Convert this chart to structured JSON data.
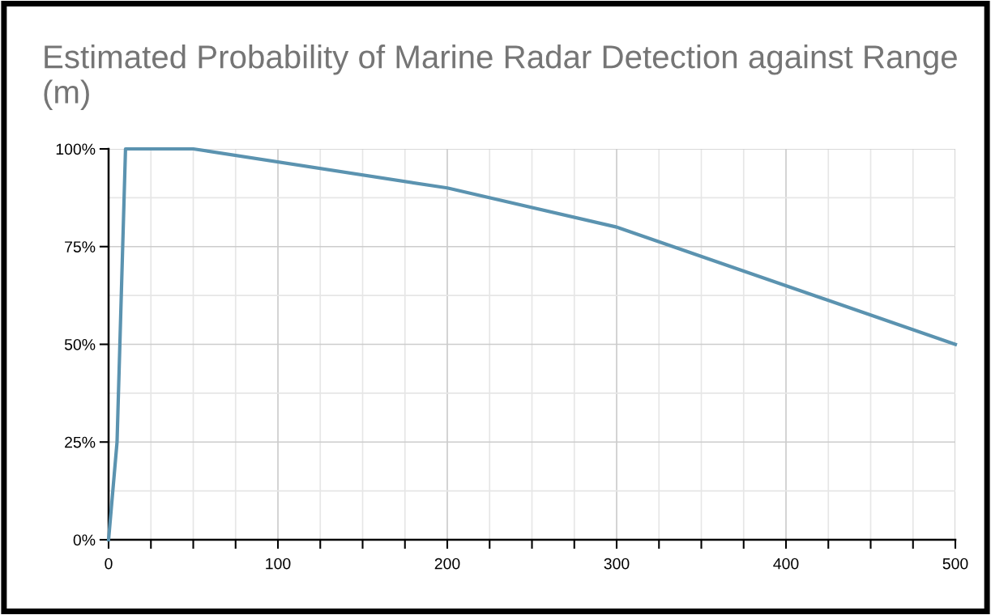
{
  "chart_data": {
    "type": "line",
    "title": "Estimated Probability of Marine Radar Detection against Range (m)",
    "x": [
      0,
      5,
      10,
      50,
      200,
      300,
      500
    ],
    "series": [
      {
        "color": "#5b93b0",
        "values": [
          0,
          25,
          100,
          100,
          90,
          80,
          50
        ]
      }
    ],
    "xlim": [
      0,
      500
    ],
    "ylim": [
      0,
      100
    ],
    "xticks": [
      0,
      {
        "value": 25,
        "label": null
      },
      {
        "value": 50,
        "label": null
      },
      {
        "value": 75,
        "label": null
      },
      100,
      {
        "value": 125,
        "label": null
      },
      {
        "value": 150,
        "label": null
      },
      {
        "value": 175,
        "label": null
      },
      200,
      {
        "value": 225,
        "label": null
      },
      {
        "value": 250,
        "label": null
      },
      {
        "value": 275,
        "label": null
      },
      300,
      {
        "value": 325,
        "label": null
      },
      {
        "value": 350,
        "label": null
      },
      {
        "value": 375,
        "label": null
      },
      400,
      {
        "value": 425,
        "label": null
      },
      {
        "value": 450,
        "label": null
      },
      {
        "value": 475,
        "label": null
      },
      500
    ],
    "yticks": [
      {
        "value": 0,
        "label": "0%"
      },
      {
        "value": 25,
        "label": "25%"
      },
      {
        "value": 50,
        "label": "50%"
      },
      {
        "value": 75,
        "label": "75%"
      },
      {
        "value": 100,
        "label": "100%"
      }
    ],
    "grid": true
  }
}
